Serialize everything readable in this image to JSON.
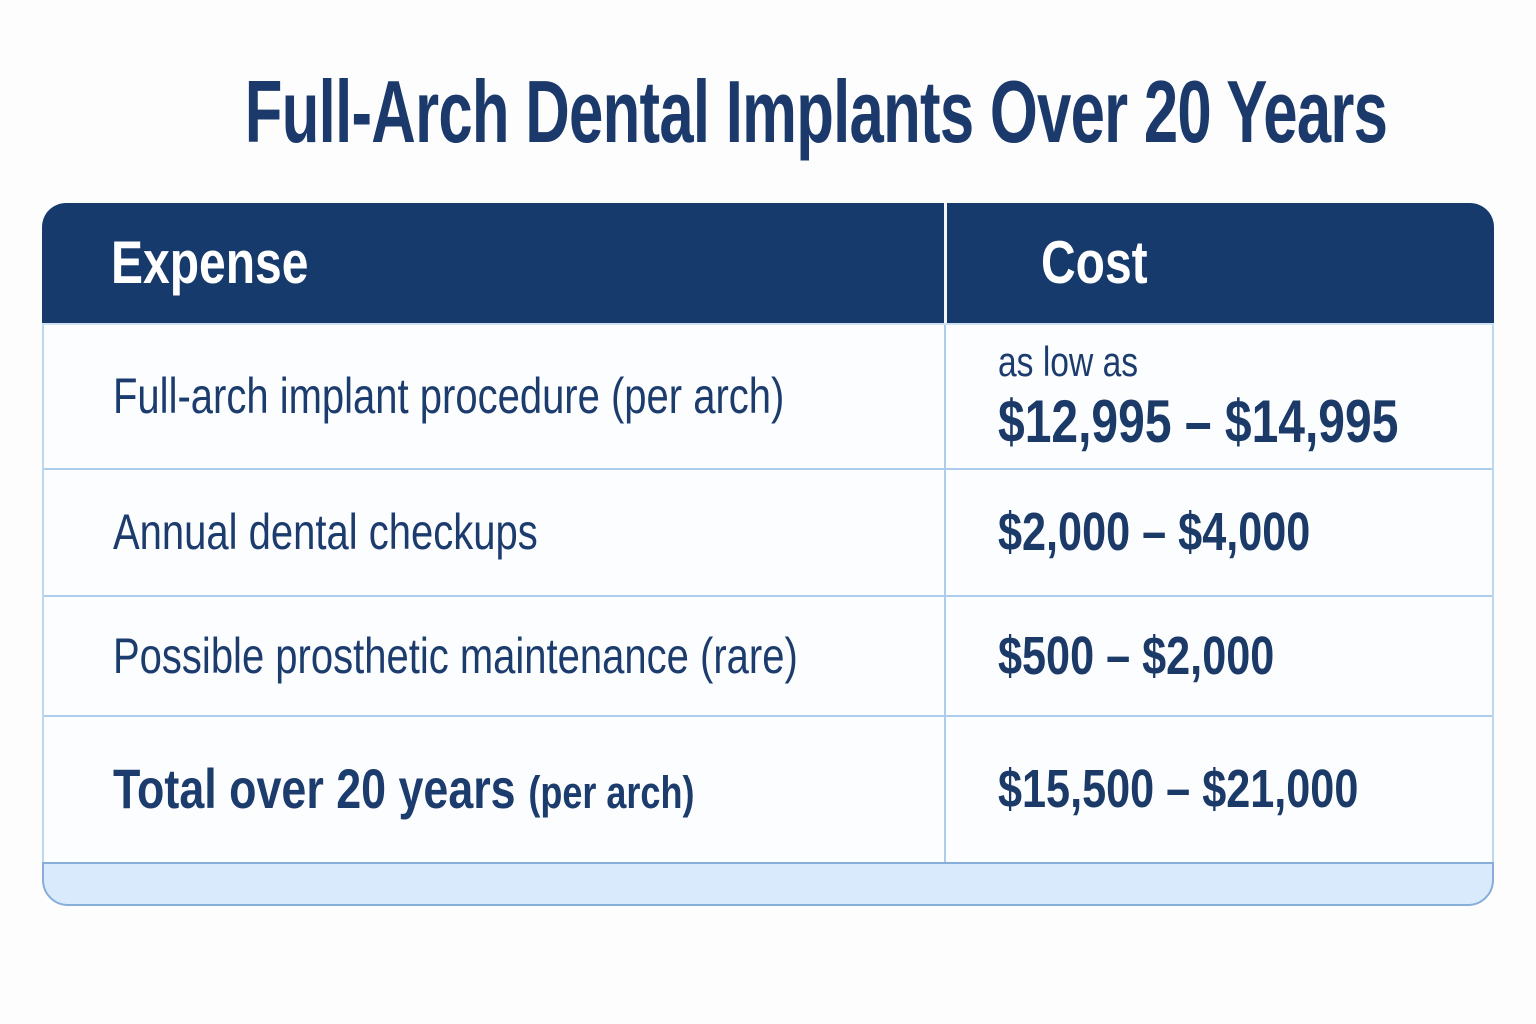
{
  "title": "Full-Arch Dental Implants Over 20 Years",
  "table": {
    "header": {
      "expense": "Expense",
      "cost": "Cost"
    },
    "rows": [
      {
        "expense": "Full-arch implant procedure (per arch)",
        "cost_note": "as low as",
        "cost": "$12,995 – $14,995"
      },
      {
        "expense": "Annual dental checkups",
        "cost": "$2,000 – $4,000"
      },
      {
        "expense": "Possible prosthetic maintenance (rare)",
        "cost": "$500 – $2,000"
      },
      {
        "expense": "Total over 20 years",
        "expense_note": "(per arch)",
        "cost": "$15,500 – $21,000"
      }
    ]
  },
  "colors": {
    "header_bg": "#173a6c",
    "header_text": "#ffffff",
    "text_navy": "#1c3c6e",
    "row_bg": "#fcfdfe",
    "divider_blue": "#aecdee",
    "footer_bg": "#d9eafc",
    "footer_border": "#86aed8",
    "page_bg": "#fdfdfd"
  },
  "chart_data": {
    "type": "table",
    "title": "Full-Arch Dental Implants Over 20 Years",
    "columns": [
      "Expense",
      "Cost"
    ],
    "rows": [
      [
        "Full-arch implant procedure (per arch)",
        "as low as $12,995 – $14,995"
      ],
      [
        "Annual dental checkups",
        "$2,000 – $4,000"
      ],
      [
        "Possible prosthetic maintenance (rare)",
        "$500 – $2,000"
      ],
      [
        "Total over 20 years (per arch)",
        "$15,500 – $21,000"
      ]
    ],
    "cost_ranges_usd": [
      [
        12995,
        14995
      ],
      [
        2000,
        4000
      ],
      [
        500,
        2000
      ],
      [
        15500,
        21000
      ]
    ],
    "notes": "Row 1 cost is prefixed with the text 'as low as'; final row is the bold total row."
  }
}
